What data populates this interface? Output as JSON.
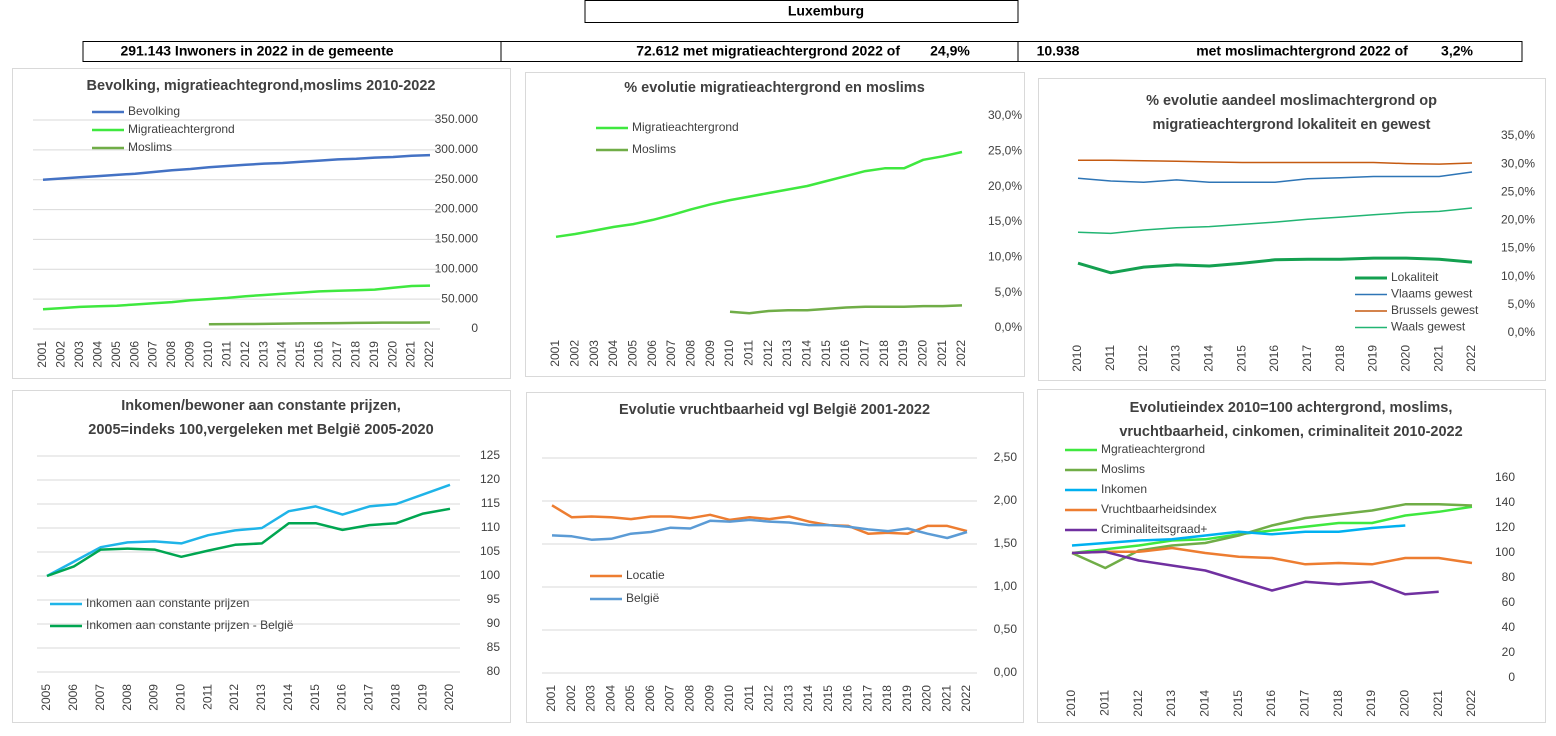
{
  "header": {
    "title": "Luxemburg",
    "cells": [
      "291.143 Inwoners in 2022 in de gemeente",
      "72.612 met migratieachtergrond 2022 of",
      "24,9%",
      "10.938",
      "met moslimachtergrond 2022 of",
      "3,2%"
    ]
  },
  "chart_data": [
    {
      "type": "line",
      "title": [
        "Bevolking, migratieachtegrond,moslims  2010-2022"
      ],
      "legend": "upper left",
      "grid": true,
      "categories": [
        "2001",
        "2002",
        "2003",
        "2004",
        "2005",
        "2006",
        "2007",
        "2008",
        "2009",
        "2010",
        "2011",
        "2012",
        "2013",
        "2014",
        "2015",
        "2016",
        "2017",
        "2018",
        "2019",
        "2020",
        "2021",
        "2022"
      ],
      "ylim": [
        0,
        350000
      ],
      "yticks": [
        0,
        {
          "value": 50000,
          "label": "50.000"
        },
        {
          "value": 100000,
          "label": "100.000"
        },
        {
          "value": 150000,
          "label": "150.000"
        },
        {
          "value": 200000,
          "label": "200.000"
        },
        {
          "value": 250000,
          "label": "250.000"
        },
        {
          "value": 300000,
          "label": "300.000"
        },
        {
          "value": 350000,
          "label": "350.000"
        }
      ],
      "series": [
        {
          "name": "Bevolking",
          "color": "#4472c4",
          "values": [
            250000,
            252000,
            254000,
            256000,
            258000,
            260000,
            263000,
            266000,
            268000,
            271000,
            273000,
            275000,
            277000,
            278000,
            280000,
            282000,
            284000,
            285000,
            287000,
            288000,
            290000,
            291143
          ]
        },
        {
          "name": "Migratieachtergrond",
          "color": "#3fe83f",
          "values": [
            33000,
            35000,
            37000,
            38000,
            39000,
            41000,
            43000,
            45000,
            48000,
            50000,
            52000,
            55000,
            57000,
            59000,
            61000,
            63000,
            64000,
            65000,
            66000,
            69000,
            72000,
            72612
          ]
        },
        {
          "name": "Moslims",
          "color": "#70ad47",
          "values": [
            null,
            null,
            null,
            null,
            null,
            null,
            null,
            null,
            null,
            8000,
            8200,
            8400,
            8600,
            9000,
            9300,
            9600,
            9900,
            10200,
            10500,
            10700,
            10800,
            10938
          ]
        }
      ]
    },
    {
      "type": "line",
      "title": [
        "% evolutie migratieachtergrond  en moslims"
      ],
      "legend": "upper left",
      "grid": false,
      "categories": [
        "2001",
        "2002",
        "2003",
        "2004",
        "2005",
        "2006",
        "2007",
        "2008",
        "2009",
        "2010",
        "2011",
        "2012",
        "2013",
        "2014",
        "2015",
        "2016",
        "2017",
        "2018",
        "2019",
        "2020",
        "2021",
        "2022"
      ],
      "ylim": [
        0,
        30
      ],
      "yticks": [
        {
          "value": 0,
          "label": "0,0%"
        },
        {
          "value": 5,
          "label": "5,0%"
        },
        {
          "value": 10,
          "label": "10,0%"
        },
        {
          "value": 15,
          "label": "15,0%"
        },
        {
          "value": 20,
          "label": "20,0%"
        },
        {
          "value": 25,
          "label": "25,0%"
        },
        {
          "value": 30,
          "label": "30,0%"
        }
      ],
      "series": [
        {
          "name": "Migratieachtergrond",
          "color": "#3fe83f",
          "values": [
            12.9,
            13.3,
            13.8,
            14.3,
            14.7,
            15.3,
            16.0,
            16.8,
            17.5,
            18.1,
            18.6,
            19.1,
            19.6,
            20.1,
            20.8,
            21.5,
            22.2,
            22.6,
            22.6,
            23.8,
            24.3,
            24.9
          ]
        },
        {
          "name": "Moslims",
          "color": "#70ad47",
          "values": [
            null,
            null,
            null,
            null,
            null,
            null,
            null,
            null,
            null,
            2.3,
            2.1,
            2.4,
            2.5,
            2.5,
            2.7,
            2.9,
            3.0,
            3.0,
            3.0,
            3.1,
            3.1,
            3.2
          ]
        }
      ]
    },
    {
      "type": "line",
      "title": [
        "% evolutie aandeel moslimachtergrond op",
        "migratieachtergrond lokaliteit en gewest"
      ],
      "legend": "lower right",
      "grid": false,
      "categories": [
        "2010",
        "2011",
        "2012",
        "2013",
        "2014",
        "2015",
        "2016",
        "2017",
        "2018",
        "2019",
        "2020",
        "2021",
        "2022"
      ],
      "ylim": [
        0,
        35
      ],
      "yticks": [
        {
          "value": 0,
          "label": "0,0%"
        },
        {
          "value": 5,
          "label": "5,0%"
        },
        {
          "value": 10,
          "label": "10,0%"
        },
        {
          "value": 15,
          "label": "15,0%"
        },
        {
          "value": 20,
          "label": "20,0%"
        },
        {
          "value": 25,
          "label": "25,0%"
        },
        {
          "value": 30,
          "label": "30,0%"
        },
        {
          "value": 35,
          "label": "35,0%"
        }
      ],
      "series": [
        {
          "name": "Lokaliteit",
          "color": "#14a050",
          "values": [
            12.4,
            10.7,
            11.7,
            12.1,
            11.9,
            12.4,
            13.0,
            13.1,
            13.1,
            13.3,
            13.3,
            13.1,
            12.6
          ]
        },
        {
          "name": "Vlaams gewest",
          "color": "#2e75b6",
          "values": [
            27.5,
            27.0,
            26.8,
            27.2,
            26.8,
            26.8,
            26.8,
            27.4,
            27.6,
            27.8,
            27.8,
            27.8,
            28.6
          ]
        },
        {
          "name": "Brussels gewest",
          "color": "#c55a11",
          "values": [
            30.7,
            30.7,
            30.6,
            30.5,
            30.4,
            30.3,
            30.3,
            30.3,
            30.3,
            30.3,
            30.1,
            30.0,
            30.2
          ]
        },
        {
          "name": "Waals gewest",
          "color": "#22b573",
          "values": [
            17.9,
            17.7,
            18.3,
            18.7,
            18.9,
            19.3,
            19.7,
            20.2,
            20.6,
            21.0,
            21.4,
            21.6,
            22.2
          ]
        }
      ]
    },
    {
      "type": "line",
      "title": [
        "Inkomen/bewoner aan constante prijzen,",
        "2005=indeks 100,vergeleken met België 2005-2020"
      ],
      "legend": "lower left",
      "grid": true,
      "categories": [
        "2005",
        "2006",
        "2007",
        "2008",
        "2009",
        "2010",
        "2011",
        "2012",
        "2013",
        "2014",
        "2015",
        "2016",
        "2017",
        "2018",
        "2019",
        "2020"
      ],
      "ylim": [
        80,
        125
      ],
      "yticks": [
        80,
        85,
        90,
        95,
        100,
        105,
        110,
        115,
        120,
        125
      ],
      "series": [
        {
          "name": "Inkomen aan constante prijzen",
          "color": "#1fb4e8",
          "values": [
            100,
            103,
            106,
            107,
            107.2,
            106.8,
            108.5,
            109.5,
            110,
            113.5,
            114.5,
            112.8,
            114.5,
            115,
            117,
            119
          ]
        },
        {
          "name": "Inkomen aan constante prijzen - België",
          "color": "#00a651",
          "values": [
            100,
            102,
            105.5,
            105.7,
            105.5,
            104,
            105.3,
            106.5,
            106.8,
            111,
            111,
            109.6,
            110.6,
            111,
            113,
            114
          ]
        }
      ]
    },
    {
      "type": "line",
      "title": [
        "Evolutie vruchtbaarheid vgl België 2001-2022"
      ],
      "legend": "lower left",
      "grid": true,
      "categories": [
        "2001",
        "2002",
        "2003",
        "2004",
        "2005",
        "2006",
        "2007",
        "2008",
        "2009",
        "2010",
        "2011",
        "2012",
        "2013",
        "2014",
        "2015",
        "2016",
        "2017",
        "2018",
        "2019",
        "2020",
        "2021",
        "2022"
      ],
      "ylim": [
        0,
        2.5
      ],
      "yticks": [
        {
          "value": 0,
          "label": "0,00"
        },
        {
          "value": 0.5,
          "label": "0,50"
        },
        {
          "value": 1,
          "label": "1,00"
        },
        {
          "value": 1.5,
          "label": "1,50"
        },
        {
          "value": 2,
          "label": "2,00"
        },
        {
          "value": 2.5,
          "label": "2,50"
        }
      ],
      "series": [
        {
          "name": "Locatie",
          "color": "#ed7d31",
          "values": [
            1.95,
            1.81,
            1.82,
            1.81,
            1.79,
            1.82,
            1.82,
            1.8,
            1.84,
            1.78,
            1.81,
            1.79,
            1.82,
            1.76,
            1.72,
            1.71,
            1.62,
            1.63,
            1.62,
            1.71,
            1.71,
            1.65
          ]
        },
        {
          "name": "België",
          "color": "#5b9bd5",
          "values": [
            1.6,
            1.59,
            1.55,
            1.56,
            1.62,
            1.64,
            1.69,
            1.68,
            1.77,
            1.76,
            1.78,
            1.76,
            1.75,
            1.72,
            1.72,
            1.7,
            1.67,
            1.65,
            1.68,
            1.62,
            1.57,
            1.64
          ]
        }
      ]
    },
    {
      "type": "line",
      "title": [
        "Evolutieindex 2010=100 achtergrond, moslims,",
        "vruchtbaarheid, cinkomen, criminaliteit  2010-2022"
      ],
      "legend": "upper left",
      "grid": false,
      "categories": [
        "2010",
        "2011",
        "2012",
        "2013",
        "2014",
        "2015",
        "2016",
        "2017",
        "2018",
        "2019",
        "2020",
        "2021",
        "2022"
      ],
      "ylim": [
        0,
        160
      ],
      "yticks": [
        0,
        20,
        40,
        60,
        80,
        100,
        120,
        140,
        160
      ],
      "series": [
        {
          "name": "Mgratieachtergrond",
          "color": "#3fe83f",
          "values": [
            100,
            103,
            106,
            110,
            111,
            115,
            118,
            121,
            124,
            124,
            130,
            133,
            137
          ]
        },
        {
          "name": "Moslims",
          "color": "#70ad47",
          "values": [
            100,
            88,
            102,
            106,
            108,
            114,
            122,
            128,
            131,
            134,
            139,
            139,
            138
          ]
        },
        {
          "name": "Inkomen",
          "color": "#00b0f0",
          "values": [
            106,
            108,
            110,
            111,
            114,
            117,
            115,
            117,
            117,
            120,
            122,
            null,
            null
          ]
        },
        {
          "name": "Vruchtbaarheidsindex",
          "color": "#ed7d31",
          "values": [
            100,
            101,
            101,
            104,
            100,
            97,
            96,
            91,
            92,
            91,
            96,
            96,
            92
          ]
        },
        {
          "name": "Criminaliteitsgraad+",
          "color": "#7030a0",
          "values": [
            100,
            101,
            94,
            90,
            86,
            78,
            70,
            77,
            75,
            77,
            67,
            69,
            null
          ]
        }
      ]
    }
  ]
}
